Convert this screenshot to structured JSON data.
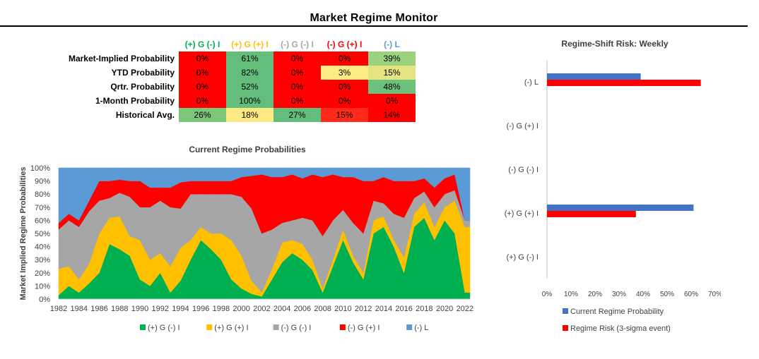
{
  "title": "Market Regime Monitor",
  "colors": {
    "pos_g_neg_i": "#00b050",
    "pos_g_pos_i": "#ffc000",
    "neg_g_neg_i": "#a6a6a6",
    "neg_g_pos_i": "#ff0000",
    "neg_l": "#5b9bd5",
    "bar_current": "#4472c4",
    "bar_risk": "#ff0000"
  },
  "table": {
    "columns": [
      {
        "label": "(+) G (-) I",
        "color": "#00b050"
      },
      {
        "label": "(+) G (+) I",
        "color": "#ffc000"
      },
      {
        "label": "(-) G (-) I",
        "color": "#a6a6a6"
      },
      {
        "label": "(-) G (+) I",
        "color": "#ff0000"
      },
      {
        "label": "(-) L",
        "color": "#5b9bd5"
      }
    ],
    "rows": [
      {
        "label": "Market-Implied Probability",
        "values": [
          "0%",
          "61%",
          "0%",
          "0%",
          "39%"
        ],
        "fills": [
          "#ff0000",
          "#63be7b",
          "#ff0000",
          "#ff0000",
          "#9bd27d"
        ]
      },
      {
        "label": "YTD Probability",
        "values": [
          "0%",
          "82%",
          "0%",
          "3%",
          "15%"
        ],
        "fills": [
          "#ff0000",
          "#63be7b",
          "#ff0000",
          "#ffeb84",
          "#e4e582"
        ]
      },
      {
        "label": "Qrtr. Probability",
        "values": [
          "0%",
          "52%",
          "0%",
          "0%",
          "48%"
        ],
        "fills": [
          "#ff0000",
          "#63be7b",
          "#ff0000",
          "#ff0000",
          "#6dc17c"
        ]
      },
      {
        "label": "1-Month Probability",
        "values": [
          "0%",
          "100%",
          "0%",
          "0%",
          "0%"
        ],
        "fills": [
          "#ff0000",
          "#63be7b",
          "#ff0000",
          "#ff0000",
          "#ff0000"
        ]
      },
      {
        "label": "Historical Avg.",
        "values": [
          "26%",
          "18%",
          "27%",
          "15%",
          "14%"
        ],
        "fills": [
          "#7cc67c",
          "#ffe984",
          "#63be7b",
          "#ff2a1a",
          "#ff0000"
        ]
      }
    ]
  },
  "chart_data": [
    {
      "type": "area",
      "stacked": true,
      "title": "Current Regime Probabilities",
      "ylabel": "Market Implied Regime Probabilities",
      "xlabel": "",
      "ylim": [
        0,
        1
      ],
      "yticks": [
        "0%",
        "10%",
        "20%",
        "30%",
        "40%",
        "50%",
        "60%",
        "70%",
        "80%",
        "90%",
        "100%"
      ],
      "xlim": [
        1982,
        2022.5
      ],
      "xticks": [
        "1982",
        "1984",
        "1986",
        "1988",
        "1990",
        "1992",
        "1994",
        "1996",
        "1998",
        "2000",
        "2002",
        "2004",
        "2006",
        "2008",
        "2010",
        "2012",
        "2014",
        "2016",
        "2018",
        "2020",
        "2022"
      ],
      "legend_position": "bottom",
      "series": [
        {
          "name": "(+) G (-) I",
          "color": "#00b050",
          "points": [
            [
              1982,
              0.03
            ],
            [
              1983,
              0.1
            ],
            [
              1984,
              0.05
            ],
            [
              1985,
              0.12
            ],
            [
              1986,
              0.2
            ],
            [
              1987,
              0.42
            ],
            [
              1988,
              0.38
            ],
            [
              1989,
              0.33
            ],
            [
              1990,
              0.15
            ],
            [
              1991,
              0.1
            ],
            [
              1992,
              0.2
            ],
            [
              1993,
              0.05
            ],
            [
              1994,
              0.14
            ],
            [
              1995,
              0.3
            ],
            [
              1996,
              0.45
            ],
            [
              1997,
              0.38
            ],
            [
              1998,
              0.3
            ],
            [
              1999,
              0.15
            ],
            [
              2000,
              0.08
            ],
            [
              2001,
              0.04
            ],
            [
              2002,
              0.02
            ],
            [
              2003,
              0.15
            ],
            [
              2004,
              0.28
            ],
            [
              2005,
              0.35
            ],
            [
              2006,
              0.3
            ],
            [
              2007,
              0.22
            ],
            [
              2008,
              0.05
            ],
            [
              2009,
              0.25
            ],
            [
              2010,
              0.45
            ],
            [
              2011,
              0.28
            ],
            [
              2012,
              0.15
            ],
            [
              2013,
              0.5
            ],
            [
              2014,
              0.55
            ],
            [
              2015,
              0.4
            ],
            [
              2016,
              0.2
            ],
            [
              2017,
              0.55
            ],
            [
              2018,
              0.62
            ],
            [
              2019,
              0.45
            ],
            [
              2020,
              0.6
            ],
            [
              2021,
              0.5
            ],
            [
              2022,
              0.05
            ]
          ]
        },
        {
          "name": "(+) G (+) I",
          "color": "#ffc000",
          "points": [
            [
              1982,
              0.2
            ],
            [
              1983,
              0.15
            ],
            [
              1984,
              0.1
            ],
            [
              1985,
              0.15
            ],
            [
              1986,
              0.3
            ],
            [
              1987,
              0.2
            ],
            [
              1988,
              0.25
            ],
            [
              1989,
              0.15
            ],
            [
              1990,
              0.3
            ],
            [
              1991,
              0.2
            ],
            [
              1992,
              0.15
            ],
            [
              1993,
              0.2
            ],
            [
              1994,
              0.25
            ],
            [
              1995,
              0.15
            ],
            [
              1996,
              0.1
            ],
            [
              1997,
              0.12
            ],
            [
              1998,
              0.2
            ],
            [
              1999,
              0.3
            ],
            [
              2000,
              0.25
            ],
            [
              2001,
              0.1
            ],
            [
              2002,
              0.03
            ],
            [
              2003,
              0.08
            ],
            [
              2004,
              0.15
            ],
            [
              2005,
              0.1
            ],
            [
              2006,
              0.12
            ],
            [
              2007,
              0.08
            ],
            [
              2008,
              0.03
            ],
            [
              2009,
              0.05
            ],
            [
              2010,
              0.08
            ],
            [
              2011,
              0.05
            ],
            [
              2012,
              0.05
            ],
            [
              2013,
              0.1
            ],
            [
              2014,
              0.08
            ],
            [
              2015,
              0.05
            ],
            [
              2016,
              0.12
            ],
            [
              2017,
              0.1
            ],
            [
              2018,
              0.12
            ],
            [
              2019,
              0.1
            ],
            [
              2020,
              0.1
            ],
            [
              2021,
              0.25
            ],
            [
              2022,
              0.5
            ]
          ]
        },
        {
          "name": "(-) G (-) I",
          "color": "#a6a6a6",
          "points": [
            [
              1982,
              0.3
            ],
            [
              1983,
              0.35
            ],
            [
              1984,
              0.4
            ],
            [
              1985,
              0.4
            ],
            [
              1986,
              0.25
            ],
            [
              1987,
              0.15
            ],
            [
              1988,
              0.18
            ],
            [
              1989,
              0.3
            ],
            [
              1990,
              0.25
            ],
            [
              1991,
              0.4
            ],
            [
              1992,
              0.4
            ],
            [
              1993,
              0.45
            ],
            [
              1994,
              0.3
            ],
            [
              1995,
              0.35
            ],
            [
              1996,
              0.25
            ],
            [
              1997,
              0.3
            ],
            [
              1998,
              0.3
            ],
            [
              1999,
              0.35
            ],
            [
              2000,
              0.45
            ],
            [
              2001,
              0.55
            ],
            [
              2002,
              0.45
            ],
            [
              2003,
              0.3
            ],
            [
              2004,
              0.15
            ],
            [
              2005,
              0.15
            ],
            [
              2006,
              0.2
            ],
            [
              2007,
              0.3
            ],
            [
              2008,
              0.4
            ],
            [
              2009,
              0.3
            ],
            [
              2010,
              0.15
            ],
            [
              2011,
              0.25
            ],
            [
              2012,
              0.3
            ],
            [
              2013,
              0.15
            ],
            [
              2014,
              0.1
            ],
            [
              2015,
              0.2
            ],
            [
              2016,
              0.3
            ],
            [
              2017,
              0.12
            ],
            [
              2018,
              0.08
            ],
            [
              2019,
              0.15
            ],
            [
              2020,
              0.1
            ],
            [
              2021,
              0.08
            ],
            [
              2022,
              0.05
            ]
          ]
        },
        {
          "name": "(-) G (+) I",
          "color": "#ff0000",
          "points": [
            [
              1982,
              0.05
            ],
            [
              1983,
              0.05
            ],
            [
              1984,
              0.05
            ],
            [
              1985,
              0.08
            ],
            [
              1986,
              0.15
            ],
            [
              1987,
              0.13
            ],
            [
              1988,
              0.1
            ],
            [
              1989,
              0.12
            ],
            [
              1990,
              0.2
            ],
            [
              1991,
              0.15
            ],
            [
              1992,
              0.1
            ],
            [
              1993,
              0.15
            ],
            [
              1994,
              0.2
            ],
            [
              1995,
              0.1
            ],
            [
              1996,
              0.1
            ],
            [
              1997,
              0.1
            ],
            [
              1998,
              0.1
            ],
            [
              1999,
              0.1
            ],
            [
              2000,
              0.15
            ],
            [
              2001,
              0.25
            ],
            [
              2002,
              0.45
            ],
            [
              2003,
              0.4
            ],
            [
              2004,
              0.35
            ],
            [
              2005,
              0.35
            ],
            [
              2006,
              0.3
            ],
            [
              2007,
              0.35
            ],
            [
              2008,
              0.45
            ],
            [
              2009,
              0.35
            ],
            [
              2010,
              0.25
            ],
            [
              2011,
              0.35
            ],
            [
              2012,
              0.4
            ],
            [
              2013,
              0.15
            ],
            [
              2014,
              0.2
            ],
            [
              2015,
              0.25
            ],
            [
              2016,
              0.28
            ],
            [
              2017,
              0.13
            ],
            [
              2018,
              0.1
            ],
            [
              2019,
              0.15
            ],
            [
              2020,
              0.12
            ],
            [
              2021,
              0.12
            ],
            [
              2022,
              0.0
            ]
          ]
        },
        {
          "name": "(-) L",
          "color": "#5b9bd5",
          "points": [
            [
              1982,
              0.42
            ],
            [
              1983,
              0.35
            ],
            [
              1984,
              0.4
            ],
            [
              1985,
              0.25
            ],
            [
              1986,
              0.1
            ],
            [
              1987,
              0.1
            ],
            [
              1988,
              0.09
            ],
            [
              1989,
              0.1
            ],
            [
              1990,
              0.1
            ],
            [
              1991,
              0.15
            ],
            [
              1992,
              0.15
            ],
            [
              1993,
              0.15
            ],
            [
              1994,
              0.11
            ],
            [
              1995,
              0.1
            ],
            [
              1996,
              0.1
            ],
            [
              1997,
              0.1
            ],
            [
              1998,
              0.1
            ],
            [
              1999,
              0.1
            ],
            [
              2000,
              0.07
            ],
            [
              2001,
              0.06
            ],
            [
              2002,
              0.05
            ],
            [
              2003,
              0.07
            ],
            [
              2004,
              0.07
            ],
            [
              2005,
              0.05
            ],
            [
              2006,
              0.08
            ],
            [
              2007,
              0.05
            ],
            [
              2008,
              0.07
            ],
            [
              2009,
              0.05
            ],
            [
              2010,
              0.07
            ],
            [
              2011,
              0.07
            ],
            [
              2012,
              0.1
            ],
            [
              2013,
              0.1
            ],
            [
              2014,
              0.07
            ],
            [
              2015,
              0.1
            ],
            [
              2016,
              0.1
            ],
            [
              2017,
              0.1
            ],
            [
              2018,
              0.08
            ],
            [
              2019,
              0.15
            ],
            [
              2020,
              0.08
            ],
            [
              2021,
              0.05
            ],
            [
              2022,
              0.4
            ]
          ]
        }
      ]
    },
    {
      "type": "bar",
      "orientation": "horizontal",
      "title": "Regime-Shift Risk: Weekly",
      "categories": [
        "(-) L",
        "(-) G (+) I",
        "(-) G (-) I",
        "(+) G (+) I",
        "(+) G (-) I"
      ],
      "xlim": [
        0,
        0.7
      ],
      "xticks": [
        "0%",
        "10%",
        "20%",
        "30%",
        "40%",
        "50%",
        "60%",
        "70%"
      ],
      "legend_position": "bottom",
      "series": [
        {
          "name": "Current Regime Probability",
          "color": "#4472c4",
          "values": [
            0.39,
            0,
            0,
            0.61,
            0
          ]
        },
        {
          "name": "Regime Risk (3-sigma event)",
          "color": "#ff0000",
          "values": [
            0.64,
            0,
            0,
            0.37,
            0
          ]
        }
      ]
    }
  ]
}
